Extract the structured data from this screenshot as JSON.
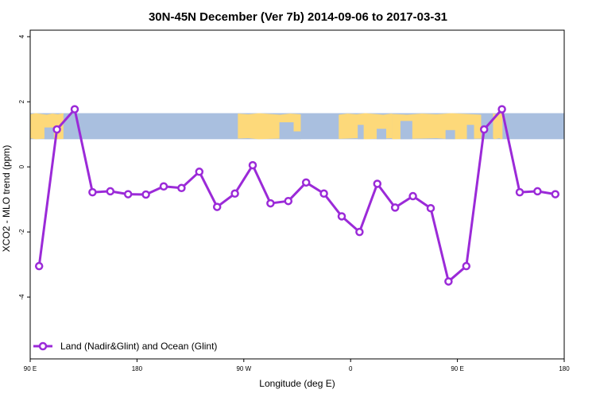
{
  "chart_data": {
    "type": "line",
    "title": "30N-45N December (Ver 7b)   2014-09-06 to 2017-03-31",
    "xlabel": "Longitude (deg E)",
    "ylabel": "XCO2 - MLO trend (ppm)",
    "xlim": [
      90,
      540
    ],
    "ylim": [
      -5.9,
      4.2
    ],
    "x_ticks": [
      {
        "value": 90,
        "label": "90 E"
      },
      {
        "value": 180,
        "label": "180"
      },
      {
        "value": 270,
        "label": "90 W"
      },
      {
        "value": 360,
        "label": "0"
      },
      {
        "value": 450,
        "label": "90 E"
      },
      {
        "value": 540,
        "label": "180"
      }
    ],
    "y_ticks": [
      {
        "value": 4,
        "label": "4"
      },
      {
        "value": 2,
        "label": "2"
      },
      {
        "value": 0,
        "label": "0"
      },
      {
        "value": -2,
        "label": "-2"
      },
      {
        "value": -4,
        "label": "-4"
      }
    ],
    "map_band": {
      "y_range": [
        0.85,
        1.65
      ],
      "ocean_color": "#a9bfdf",
      "land_color": "#fdd97a"
    },
    "legend": {
      "position": "bottom-left"
    },
    "series": [
      {
        "name": "Land (Nadir&Glint) and Ocean (Glint)",
        "color": "#9b2ad8",
        "x": [
          97.5,
          112.5,
          127.5,
          142.5,
          157.5,
          172.5,
          187.5,
          202.5,
          217.5,
          232.5,
          247.5,
          262.5,
          277.5,
          292.5,
          307.5,
          322.5,
          337.5,
          352.5,
          367.5,
          382.5,
          397.5,
          412.5,
          427.5,
          442.5,
          457.5,
          472.5,
          487.5,
          502.5,
          517.5,
          532.5
        ],
        "values": [
          -3.05,
          1.15,
          1.77,
          -0.78,
          -0.75,
          -0.84,
          -0.85,
          -0.6,
          -0.65,
          -0.15,
          -1.23,
          -0.82,
          0.05,
          -1.12,
          -1.05,
          -0.48,
          -0.82,
          -1.52,
          -2.0,
          -0.52,
          -1.25,
          -0.9,
          -1.27,
          -3.52,
          -3.05,
          1.15,
          1.77,
          -0.78,
          -0.75,
          -0.84
        ]
      }
    ]
  }
}
